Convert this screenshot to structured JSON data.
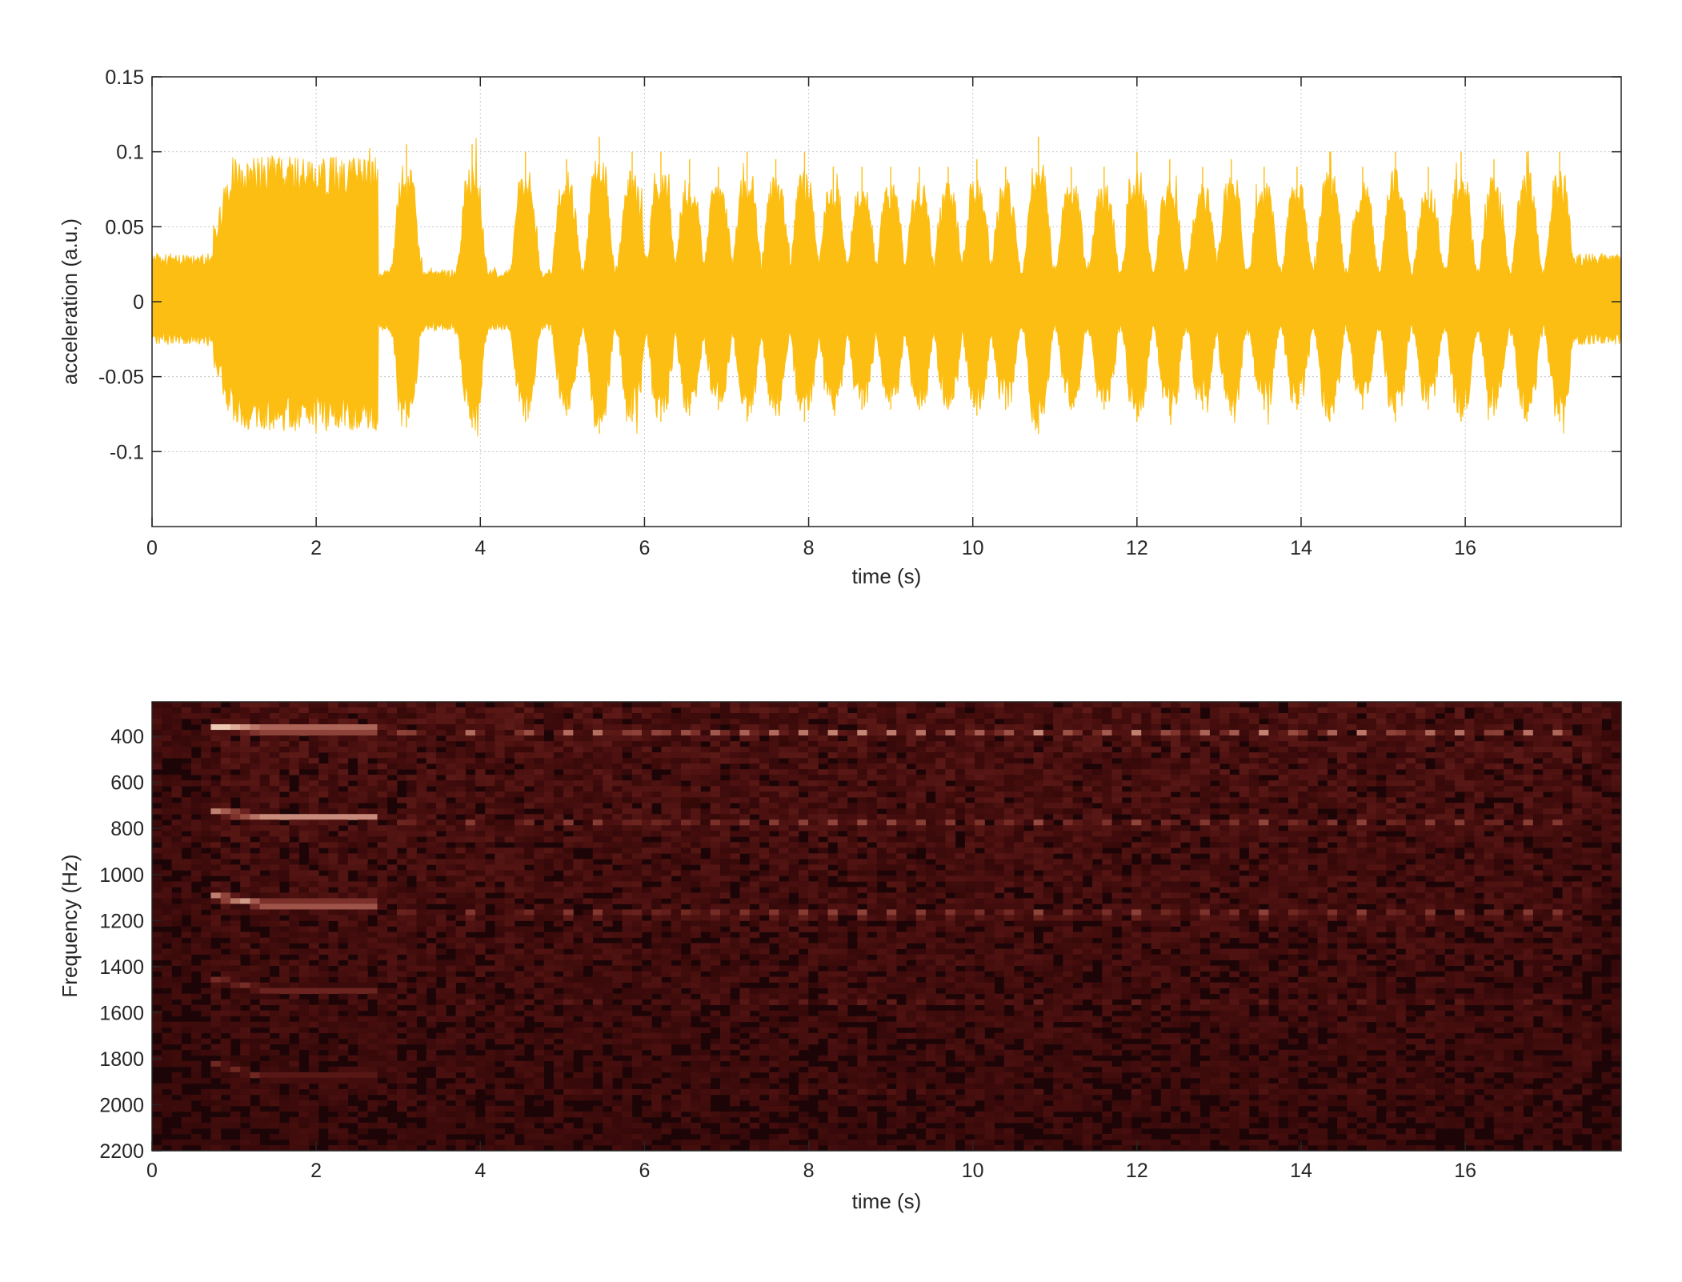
{
  "colors": {
    "waveform": "#FDBE13",
    "axes": "#262626",
    "grid": "#c8c8c8",
    "spectrogram_background": "#1d0507",
    "spectrogram_peak": "#ffe8d2"
  },
  "chart_data": [
    {
      "type": "area",
      "name": "waveform",
      "xlabel": "time (s)",
      "ylabel": "acceleration (a.u.)",
      "xlim": [
        0,
        17.9
      ],
      "ylim": [
        -0.15,
        0.15
      ],
      "xticks": [
        0,
        2,
        4,
        6,
        8,
        10,
        12,
        14,
        16
      ],
      "xtick_labels": [
        "0",
        "2",
        "4",
        "6",
        "8",
        "10",
        "12",
        "14",
        "16"
      ],
      "yticks": [
        0.15,
        0.1,
        0.05,
        0,
        -0.05,
        -0.1
      ],
      "ytick_labels": [
        "0.15",
        "0.1",
        "0.05",
        "0",
        "-0.05",
        "-0.1"
      ],
      "grid": true,
      "segments": [
        {
          "t0": 0.0,
          "t1": 0.75,
          "amp": 0.03
        },
        {
          "t0": 0.75,
          "t1": 2.75,
          "amp": 0.09
        },
        {
          "t0": 2.75,
          "t1": 17.3,
          "amp_low": 0.02,
          "amp_high": 0.095
        },
        {
          "t0": 17.3,
          "t1": 17.9,
          "amp": 0.03
        }
      ],
      "burst_times": [
        3.1,
        3.9,
        4.55,
        5.05,
        5.45,
        5.85,
        6.2,
        6.55,
        6.9,
        7.25,
        7.6,
        7.95,
        8.3,
        8.65,
        9.0,
        9.35,
        9.7,
        10.05,
        10.4,
        10.8,
        11.2,
        11.6,
        12.0,
        12.4,
        12.8,
        13.15,
        13.55,
        13.95,
        14.35,
        14.75,
        15.15,
        15.55,
        15.95,
        16.35,
        16.75,
        17.15
      ],
      "burst_peaks": [
        0.105,
        0.105,
        0.1,
        0.095,
        0.11,
        0.1,
        0.1,
        0.095,
        0.09,
        0.1,
        0.095,
        0.1,
        0.09,
        0.09,
        0.09,
        0.09,
        0.09,
        0.095,
        0.09,
        0.11,
        0.09,
        0.09,
        0.1,
        0.095,
        0.09,
        0.095,
        0.09,
        0.09,
        0.1,
        0.09,
        0.1,
        0.09,
        0.1,
        0.095,
        0.1,
        0.1
      ]
    },
    {
      "type": "heatmap",
      "name": "spectrogram",
      "xlabel": "time (s)",
      "ylabel": "Frequency (Hz)",
      "xlim": [
        0,
        17.9
      ],
      "ylim": [
        250,
        2200
      ],
      "xticks": [
        0,
        2,
        4,
        6,
        8,
        10,
        12,
        14,
        16
      ],
      "xtick_labels": [
        "0",
        "2",
        "4",
        "6",
        "8",
        "10",
        "12",
        "14",
        "16"
      ],
      "yticks": [
        400,
        600,
        800,
        1000,
        1200,
        1400,
        1600,
        1800,
        2000,
        2200
      ],
      "ytick_labels": [
        "400",
        "600",
        "800",
        "1000",
        "1200",
        "1400",
        "1600",
        "1800",
        "2000",
        "2200"
      ],
      "y_reversed": true,
      "sustained_tone": {
        "t0": 0.75,
        "t1": 2.75
      },
      "harmonics_hz": [
        370,
        750,
        1130,
        1500,
        1880
      ],
      "harmonic_intensity": [
        1.0,
        0.75,
        0.85,
        0.35,
        0.3
      ],
      "burst_times": [
        3.1,
        3.9,
        4.55,
        5.05,
        5.45,
        5.85,
        6.2,
        6.55,
        6.9,
        7.25,
        7.6,
        7.95,
        8.3,
        8.65,
        9.0,
        9.35,
        9.7,
        10.05,
        10.4,
        10.8,
        11.2,
        11.6,
        12.0,
        12.4,
        12.8,
        13.15,
        13.55,
        13.95,
        14.35,
        14.75,
        15.15,
        15.55,
        15.95,
        16.35,
        16.75,
        17.15
      ]
    }
  ]
}
